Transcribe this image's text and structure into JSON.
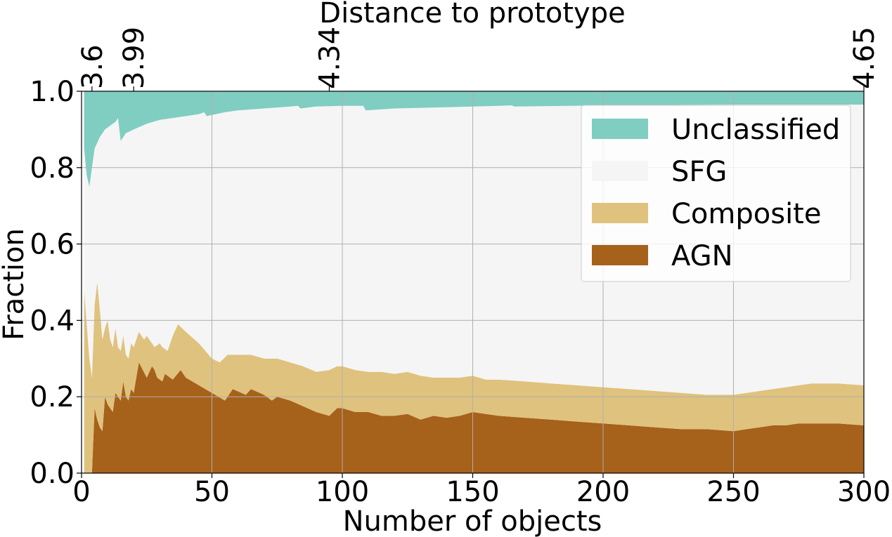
{
  "chart_data": {
    "type": "area",
    "stacked": true,
    "title": "",
    "xlabel": "Number of objects",
    "ylabel": "Fraction",
    "top_xlabel": "Distance to prototype",
    "xlim": [
      0,
      300
    ],
    "ylim": [
      0.0,
      1.0
    ],
    "grid": true,
    "x_ticks": [
      0,
      50,
      100,
      150,
      200,
      250,
      300
    ],
    "y_ticks": [
      "0.0",
      "0.2",
      "0.4",
      "0.6",
      "0.8",
      "1.0"
    ],
    "top_ticks": [
      {
        "x": 4,
        "label": "3.6"
      },
      {
        "x": 20,
        "label": "3.99"
      },
      {
        "x": 95,
        "label": "4.34"
      },
      {
        "x": 300,
        "label": "4.65"
      }
    ],
    "legend_position": "upper-right",
    "series": [
      {
        "name": "AGN",
        "color": "#a6611a",
        "points": [
          [
            1,
            0
          ],
          [
            4,
            0
          ],
          [
            5,
            0.17
          ],
          [
            6,
            0.14
          ],
          [
            7,
            0.12
          ],
          [
            8,
            0.11
          ],
          [
            9,
            0.2
          ],
          [
            10,
            0.18
          ],
          [
            12,
            0.16
          ],
          [
            13,
            0.21
          ],
          [
            15,
            0.19
          ],
          [
            16,
            0.24
          ],
          [
            17,
            0.2
          ],
          [
            18,
            0.19
          ],
          [
            19,
            0.22
          ],
          [
            20,
            0.21
          ],
          [
            22,
            0.29
          ],
          [
            25,
            0.25
          ],
          [
            27,
            0.28
          ],
          [
            28,
            0.27
          ],
          [
            29,
            0.25
          ],
          [
            31,
            0.24
          ],
          [
            32,
            0.26
          ],
          [
            35,
            0.245
          ],
          [
            38,
            0.27
          ],
          [
            40,
            0.25
          ],
          [
            45,
            0.23
          ],
          [
            50,
            0.21
          ],
          [
            55,
            0.19
          ],
          [
            58,
            0.22
          ],
          [
            63,
            0.205
          ],
          [
            65,
            0.22
          ],
          [
            70,
            0.205
          ],
          [
            73,
            0.19
          ],
          [
            75,
            0.2
          ],
          [
            80,
            0.19
          ],
          [
            85,
            0.175
          ],
          [
            90,
            0.16
          ],
          [
            95,
            0.15
          ],
          [
            98,
            0.17
          ],
          [
            100,
            0.17
          ],
          [
            105,
            0.16
          ],
          [
            110,
            0.16
          ],
          [
            115,
            0.15
          ],
          [
            120,
            0.15
          ],
          [
            125,
            0.155
          ],
          [
            130,
            0.14
          ],
          [
            135,
            0.15
          ],
          [
            140,
            0.145
          ],
          [
            145,
            0.15
          ],
          [
            150,
            0.16
          ],
          [
            155,
            0.155
          ],
          [
            160,
            0.15
          ],
          [
            170,
            0.145
          ],
          [
            180,
            0.14
          ],
          [
            190,
            0.135
          ],
          [
            200,
            0.13
          ],
          [
            210,
            0.125
          ],
          [
            220,
            0.12
          ],
          [
            230,
            0.115
          ],
          [
            240,
            0.115
          ],
          [
            250,
            0.11
          ],
          [
            255,
            0.115
          ],
          [
            260,
            0.12
          ],
          [
            265,
            0.125
          ],
          [
            270,
            0.125
          ],
          [
            275,
            0.13
          ],
          [
            280,
            0.13
          ],
          [
            290,
            0.13
          ],
          [
            300,
            0.125
          ]
        ]
      },
      {
        "name": "Composite",
        "color": "#dfc27d",
        "points": [
          [
            1,
            0.48
          ],
          [
            3,
            0.3
          ],
          [
            4,
            0.25
          ],
          [
            5,
            0.44
          ],
          [
            6,
            0.5
          ],
          [
            7,
            0.43
          ],
          [
            8,
            0.35
          ],
          [
            9,
            0.38
          ],
          [
            10,
            0.4
          ],
          [
            11,
            0.35
          ],
          [
            12,
            0.33
          ],
          [
            13,
            0.38
          ],
          [
            14,
            0.33
          ],
          [
            15,
            0.32
          ],
          [
            16,
            0.36
          ],
          [
            17,
            0.31
          ],
          [
            18,
            0.3
          ],
          [
            19,
            0.34
          ],
          [
            20,
            0.33
          ],
          [
            22,
            0.37
          ],
          [
            24,
            0.35
          ],
          [
            25,
            0.36
          ],
          [
            27,
            0.34
          ],
          [
            28,
            0.33
          ],
          [
            30,
            0.34
          ],
          [
            31,
            0.33
          ],
          [
            33,
            0.32
          ],
          [
            35,
            0.36
          ],
          [
            37,
            0.39
          ],
          [
            40,
            0.37
          ],
          [
            45,
            0.34
          ],
          [
            50,
            0.3
          ],
          [
            53,
            0.29
          ],
          [
            56,
            0.31
          ],
          [
            60,
            0.31
          ],
          [
            65,
            0.31
          ],
          [
            70,
            0.3
          ],
          [
            75,
            0.3
          ],
          [
            80,
            0.29
          ],
          [
            85,
            0.28
          ],
          [
            90,
            0.265
          ],
          [
            95,
            0.27
          ],
          [
            98,
            0.28
          ],
          [
            100,
            0.28
          ],
          [
            105,
            0.27
          ],
          [
            110,
            0.265
          ],
          [
            115,
            0.265
          ],
          [
            120,
            0.26
          ],
          [
            125,
            0.265
          ],
          [
            130,
            0.255
          ],
          [
            135,
            0.25
          ],
          [
            140,
            0.25
          ],
          [
            145,
            0.25
          ],
          [
            150,
            0.255
          ],
          [
            155,
            0.245
          ],
          [
            160,
            0.245
          ],
          [
            170,
            0.24
          ],
          [
            180,
            0.235
          ],
          [
            190,
            0.23
          ],
          [
            200,
            0.225
          ],
          [
            210,
            0.22
          ],
          [
            220,
            0.215
          ],
          [
            230,
            0.21
          ],
          [
            240,
            0.205
          ],
          [
            250,
            0.205
          ],
          [
            255,
            0.21
          ],
          [
            260,
            0.215
          ],
          [
            265,
            0.22
          ],
          [
            270,
            0.225
          ],
          [
            275,
            0.23
          ],
          [
            280,
            0.235
          ],
          [
            290,
            0.235
          ],
          [
            300,
            0.23
          ]
        ]
      },
      {
        "name": "SFG",
        "color": "#f5f5f5",
        "points": [
          [
            1,
            0.85
          ],
          [
            2,
            0.78
          ],
          [
            3,
            0.75
          ],
          [
            4,
            0.8
          ],
          [
            5,
            0.85
          ],
          [
            7,
            0.88
          ],
          [
            9,
            0.9
          ],
          [
            11,
            0.91
          ],
          [
            13,
            0.92
          ],
          [
            14,
            0.93
          ],
          [
            15,
            0.87
          ],
          [
            17,
            0.89
          ],
          [
            20,
            0.9
          ],
          [
            25,
            0.915
          ],
          [
            30,
            0.925
          ],
          [
            35,
            0.93
          ],
          [
            40,
            0.935
          ],
          [
            45,
            0.94
          ],
          [
            47,
            0.945
          ],
          [
            48,
            0.935
          ],
          [
            55,
            0.945
          ],
          [
            60,
            0.95
          ],
          [
            70,
            0.955
          ],
          [
            80,
            0.96
          ],
          [
            83,
            0.962
          ],
          [
            84,
            0.955
          ],
          [
            90,
            0.96
          ],
          [
            100,
            0.962
          ],
          [
            108,
            0.962
          ],
          [
            109,
            0.95
          ],
          [
            120,
            0.955
          ],
          [
            140,
            0.958
          ],
          [
            160,
            0.962
          ],
          [
            165,
            0.963
          ],
          [
            166,
            0.96
          ],
          [
            200,
            0.963
          ],
          [
            250,
            0.965
          ],
          [
            300,
            0.965
          ]
        ]
      },
      {
        "name": "Unclassified",
        "color": "#80cdc1",
        "points": [
          [
            1,
            1.0
          ],
          [
            300,
            1.0
          ]
        ]
      }
    ]
  }
}
